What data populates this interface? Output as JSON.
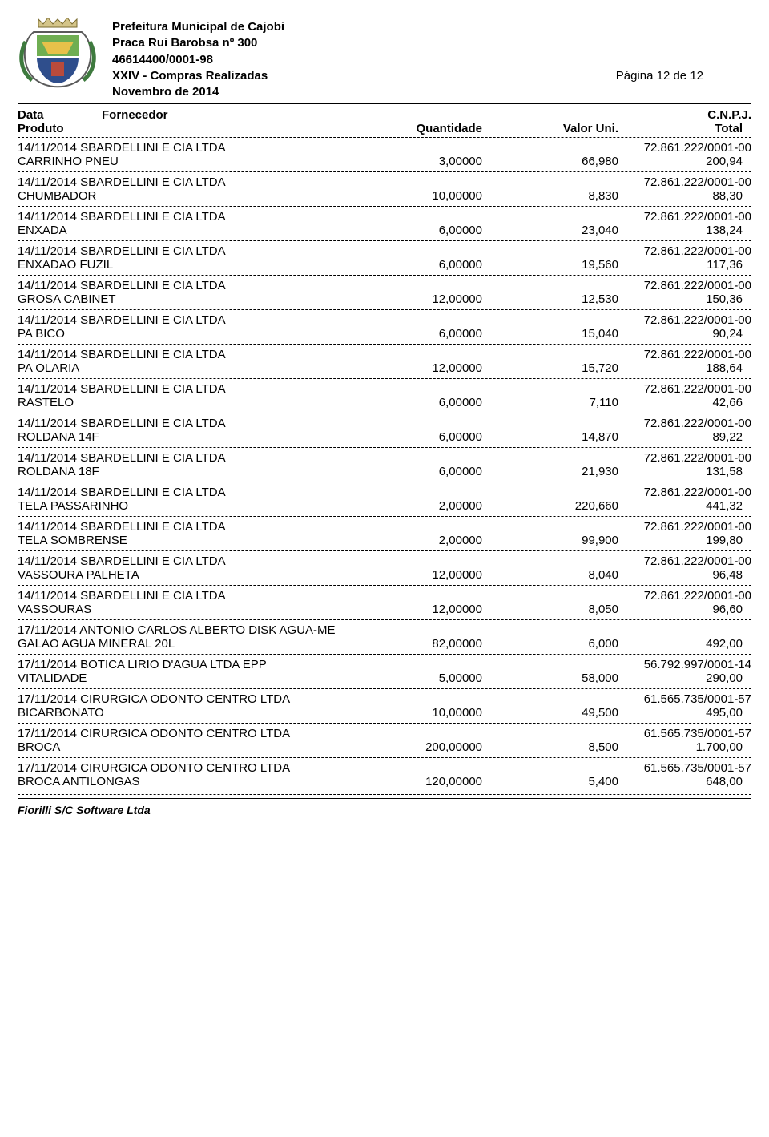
{
  "header": {
    "line1": "Prefeitura Municipal de Cajobi",
    "line2": "Praca Rui Barobsa nº 300",
    "line3": "46614400/0001-98",
    "line4": "XXIV - Compras Realizadas",
    "line5": "Novembro de 2014",
    "page_indicator": "Página 12 de 12"
  },
  "columns": {
    "data_label": "Data",
    "fornecedor_label": "Fornecedor",
    "cnpj_label": "C.N.P.J.",
    "produto_label": "Produto",
    "quantidade_label": "Quantidade",
    "valor_uni_label": "Valor Uni.",
    "total_label": "Total"
  },
  "entries": [
    {
      "date": "14/11/2014",
      "fornecedor": "SBARDELLINI E CIA LTDA",
      "cnpj": "72.861.222/0001-00",
      "produto": "CARRINHO PNEU",
      "qtd": "3,00000",
      "vuni": "66,980",
      "total": "200,94"
    },
    {
      "date": "14/11/2014",
      "fornecedor": "SBARDELLINI E CIA LTDA",
      "cnpj": "72.861.222/0001-00",
      "produto": "CHUMBADOR",
      "qtd": "10,00000",
      "vuni": "8,830",
      "total": "88,30"
    },
    {
      "date": "14/11/2014",
      "fornecedor": "SBARDELLINI E CIA LTDA",
      "cnpj": "72.861.222/0001-00",
      "produto": "ENXADA",
      "qtd": "6,00000",
      "vuni": "23,040",
      "total": "138,24"
    },
    {
      "date": "14/11/2014",
      "fornecedor": "SBARDELLINI E CIA LTDA",
      "cnpj": "72.861.222/0001-00",
      "produto": "ENXADAO FUZIL",
      "qtd": "6,00000",
      "vuni": "19,560",
      "total": "117,36"
    },
    {
      "date": "14/11/2014",
      "fornecedor": "SBARDELLINI E CIA LTDA",
      "cnpj": "72.861.222/0001-00",
      "produto": "GROSA CABINET",
      "qtd": "12,00000",
      "vuni": "12,530",
      "total": "150,36"
    },
    {
      "date": "14/11/2014",
      "fornecedor": "SBARDELLINI E CIA LTDA",
      "cnpj": "72.861.222/0001-00",
      "produto": "PA BICO",
      "qtd": "6,00000",
      "vuni": "15,040",
      "total": "90,24"
    },
    {
      "date": "14/11/2014",
      "fornecedor": "SBARDELLINI E CIA LTDA",
      "cnpj": "72.861.222/0001-00",
      "produto": "PA OLARIA",
      "qtd": "12,00000",
      "vuni": "15,720",
      "total": "188,64"
    },
    {
      "date": "14/11/2014",
      "fornecedor": "SBARDELLINI E CIA LTDA",
      "cnpj": "72.861.222/0001-00",
      "produto": "RASTELO",
      "qtd": "6,00000",
      "vuni": "7,110",
      "total": "42,66"
    },
    {
      "date": "14/11/2014",
      "fornecedor": "SBARDELLINI E CIA LTDA",
      "cnpj": "72.861.222/0001-00",
      "produto": "ROLDANA 14F",
      "qtd": "6,00000",
      "vuni": "14,870",
      "total": "89,22"
    },
    {
      "date": "14/11/2014",
      "fornecedor": "SBARDELLINI E CIA LTDA",
      "cnpj": "72.861.222/0001-00",
      "produto": "ROLDANA 18F",
      "qtd": "6,00000",
      "vuni": "21,930",
      "total": "131,58"
    },
    {
      "date": "14/11/2014",
      "fornecedor": "SBARDELLINI E CIA LTDA",
      "cnpj": "72.861.222/0001-00",
      "produto": "TELA PASSARINHO",
      "qtd": "2,00000",
      "vuni": "220,660",
      "total": "441,32"
    },
    {
      "date": "14/11/2014",
      "fornecedor": "SBARDELLINI E CIA LTDA",
      "cnpj": "72.861.222/0001-00",
      "produto": "TELA SOMBRENSE",
      "qtd": "2,00000",
      "vuni": "99,900",
      "total": "199,80"
    },
    {
      "date": "14/11/2014",
      "fornecedor": "SBARDELLINI E CIA LTDA",
      "cnpj": "72.861.222/0001-00",
      "produto": "VASSOURA PALHETA",
      "qtd": "12,00000",
      "vuni": "8,040",
      "total": "96,48"
    },
    {
      "date": "14/11/2014",
      "fornecedor": "SBARDELLINI E CIA LTDA",
      "cnpj": "72.861.222/0001-00",
      "produto": "VASSOURAS",
      "qtd": "12,00000",
      "vuni": "8,050",
      "total": "96,60"
    },
    {
      "date": "17/11/2014",
      "fornecedor": "ANTONIO CARLOS ALBERTO DISK AGUA-ME",
      "cnpj": "",
      "produto": "GALAO AGUA MINERAL 20L",
      "qtd": "82,00000",
      "vuni": "6,000",
      "total": "492,00"
    },
    {
      "date": "17/11/2014",
      "fornecedor": "BOTICA LIRIO D'AGUA LTDA EPP",
      "cnpj": "56.792.997/0001-14",
      "produto": "VITALIDADE",
      "qtd": "5,00000",
      "vuni": "58,000",
      "total": "290,00"
    },
    {
      "date": "17/11/2014",
      "fornecedor": "CIRURGICA ODONTO CENTRO LTDA",
      "cnpj": "61.565.735/0001-57",
      "produto": "BICARBONATO",
      "qtd": "10,00000",
      "vuni": "49,500",
      "total": "495,00"
    },
    {
      "date": "17/11/2014",
      "fornecedor": "CIRURGICA ODONTO CENTRO LTDA",
      "cnpj": "61.565.735/0001-57",
      "produto": "BROCA",
      "qtd": "200,00000",
      "vuni": "8,500",
      "total": "1.700,00"
    },
    {
      "date": "17/11/2014",
      "fornecedor": "CIRURGICA ODONTO CENTRO LTDA",
      "cnpj": "61.565.735/0001-57",
      "produto": "BROCA ANTILONGAS",
      "qtd": "120,00000",
      "vuni": "5,400",
      "total": "648,00"
    }
  ],
  "footer": {
    "software_credit": "Fiorilli S/C Software Ltda"
  },
  "style": {
    "font_family": "Arial",
    "font_size_pt": 11,
    "text_color": "#000000",
    "background": "#ffffff",
    "dash_color": "#000000"
  }
}
